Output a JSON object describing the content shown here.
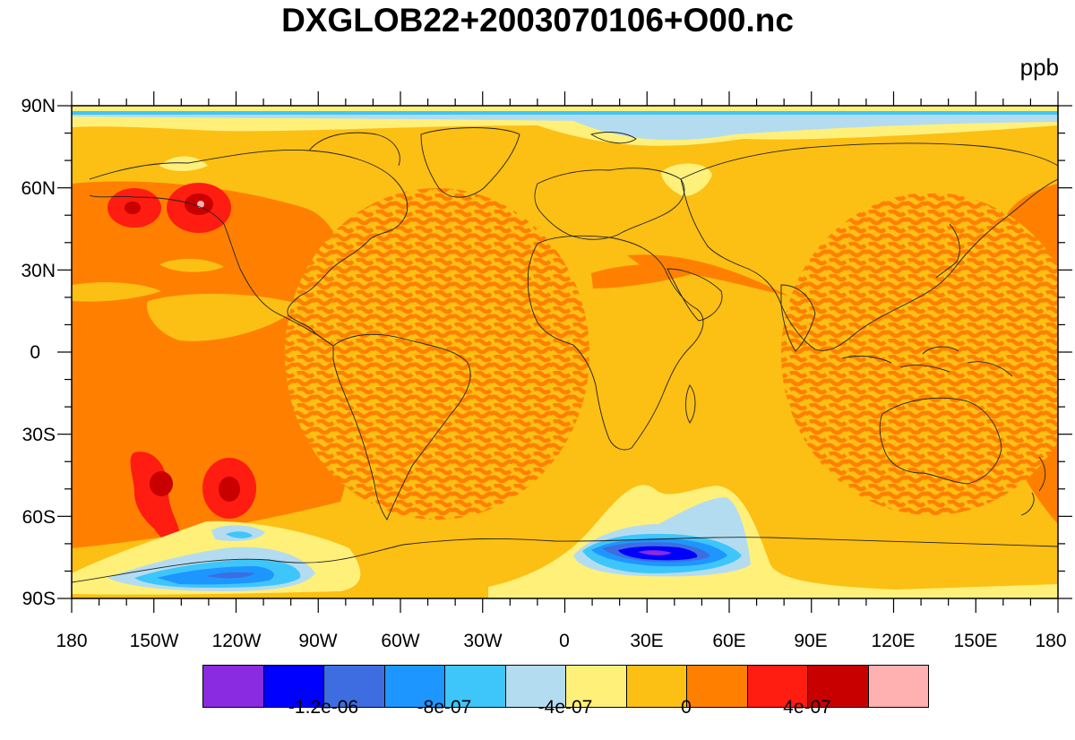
{
  "title": "DXGLOB22+2003070106+O00.nc",
  "units": "ppb",
  "lat_labels": [
    "90N",
    "60N",
    "30N",
    "0",
    "30S",
    "60S",
    "90S"
  ],
  "lon_labels": [
    "180",
    "150W",
    "120W",
    "90W",
    "60W",
    "30W",
    "0",
    "30E",
    "60E",
    "90E",
    "120E",
    "150E",
    "180"
  ],
  "colorbar": {
    "colors": [
      "#8a2be2",
      "#0000ff",
      "#3d6de0",
      "#1e96ff",
      "#3ec6fa",
      "#b4dcf0",
      "#fff07a",
      "#fcbf14",
      "#ff8000",
      "#ff1c10",
      "#c80000",
      "#ffb0b0"
    ],
    "labels": [
      "-1.2e-06",
      "-8e-07",
      "-4e-07",
      "0",
      "4e-07"
    ]
  }
}
